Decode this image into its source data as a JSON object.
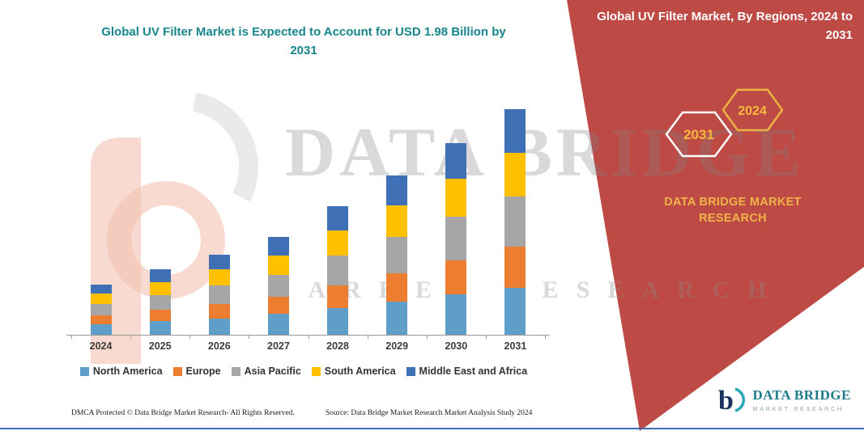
{
  "colors": {
    "accent_teal": "#17868B",
    "panel_red": "#BE4A45",
    "gold": "#F2B53D",
    "bottom_line_blue": "#3D6EB5"
  },
  "chart_data": {
    "type": "bar",
    "stacked": true,
    "title": "Global UV Filter Market is Expected to Account for USD 1.98 Billion by 2031",
    "categories": [
      "2024",
      "2025",
      "2026",
      "2027",
      "2028",
      "2029",
      "2030",
      "2031"
    ],
    "series": [
      {
        "name": "North America",
        "color": "#5F9EC9",
        "values": [
          0.1,
          0.13,
          0.15,
          0.19,
          0.24,
          0.3,
          0.36,
          0.42
        ]
      },
      {
        "name": "Europe",
        "color": "#ED7D31",
        "values": [
          0.08,
          0.1,
          0.13,
          0.15,
          0.2,
          0.25,
          0.3,
          0.36
        ]
      },
      {
        "name": "Asia Pacific",
        "color": "#A6A6A6",
        "values": [
          0.1,
          0.13,
          0.16,
          0.19,
          0.26,
          0.32,
          0.38,
          0.44
        ]
      },
      {
        "name": "South America",
        "color": "#FFC000",
        "values": [
          0.09,
          0.11,
          0.14,
          0.17,
          0.22,
          0.28,
          0.33,
          0.38
        ]
      },
      {
        "name": "Middle East and Africa",
        "color": "#3F6FB5",
        "values": [
          0.08,
          0.11,
          0.13,
          0.16,
          0.21,
          0.26,
          0.31,
          0.38
        ]
      }
    ],
    "totals": [
      0.45,
      0.58,
      0.71,
      0.86,
      1.13,
      1.41,
      1.68,
      1.98
    ],
    "unit": "USD Billion",
    "xlabel": "",
    "ylabel": "",
    "ylim": [
      0,
      2
    ],
    "gridlines": false,
    "y_axis_visible": false,
    "legend_position": "bottom"
  },
  "right_panel": {
    "header": "Global UV Filter Market, By Regions, 2024 to 2031",
    "hexagons": [
      {
        "label": "2031"
      },
      {
        "label": "2024"
      }
    ],
    "brand_line1": "DATA BRIDGE MARKET",
    "brand_line2": "RESEARCH"
  },
  "watermark": {
    "line1": "DATA BRIDGE",
    "line2": "MARKET RESEARCH"
  },
  "footer": {
    "dmca": "DMCA Protected © Data Bridge Market Research-  All Rights Reserved.",
    "source": "Source: Data Bridge Market Research  Market Analysis Study 2024"
  },
  "logo": {
    "title": "DATA BRIDGE",
    "subtitle": "MARKET RESEARCH"
  }
}
